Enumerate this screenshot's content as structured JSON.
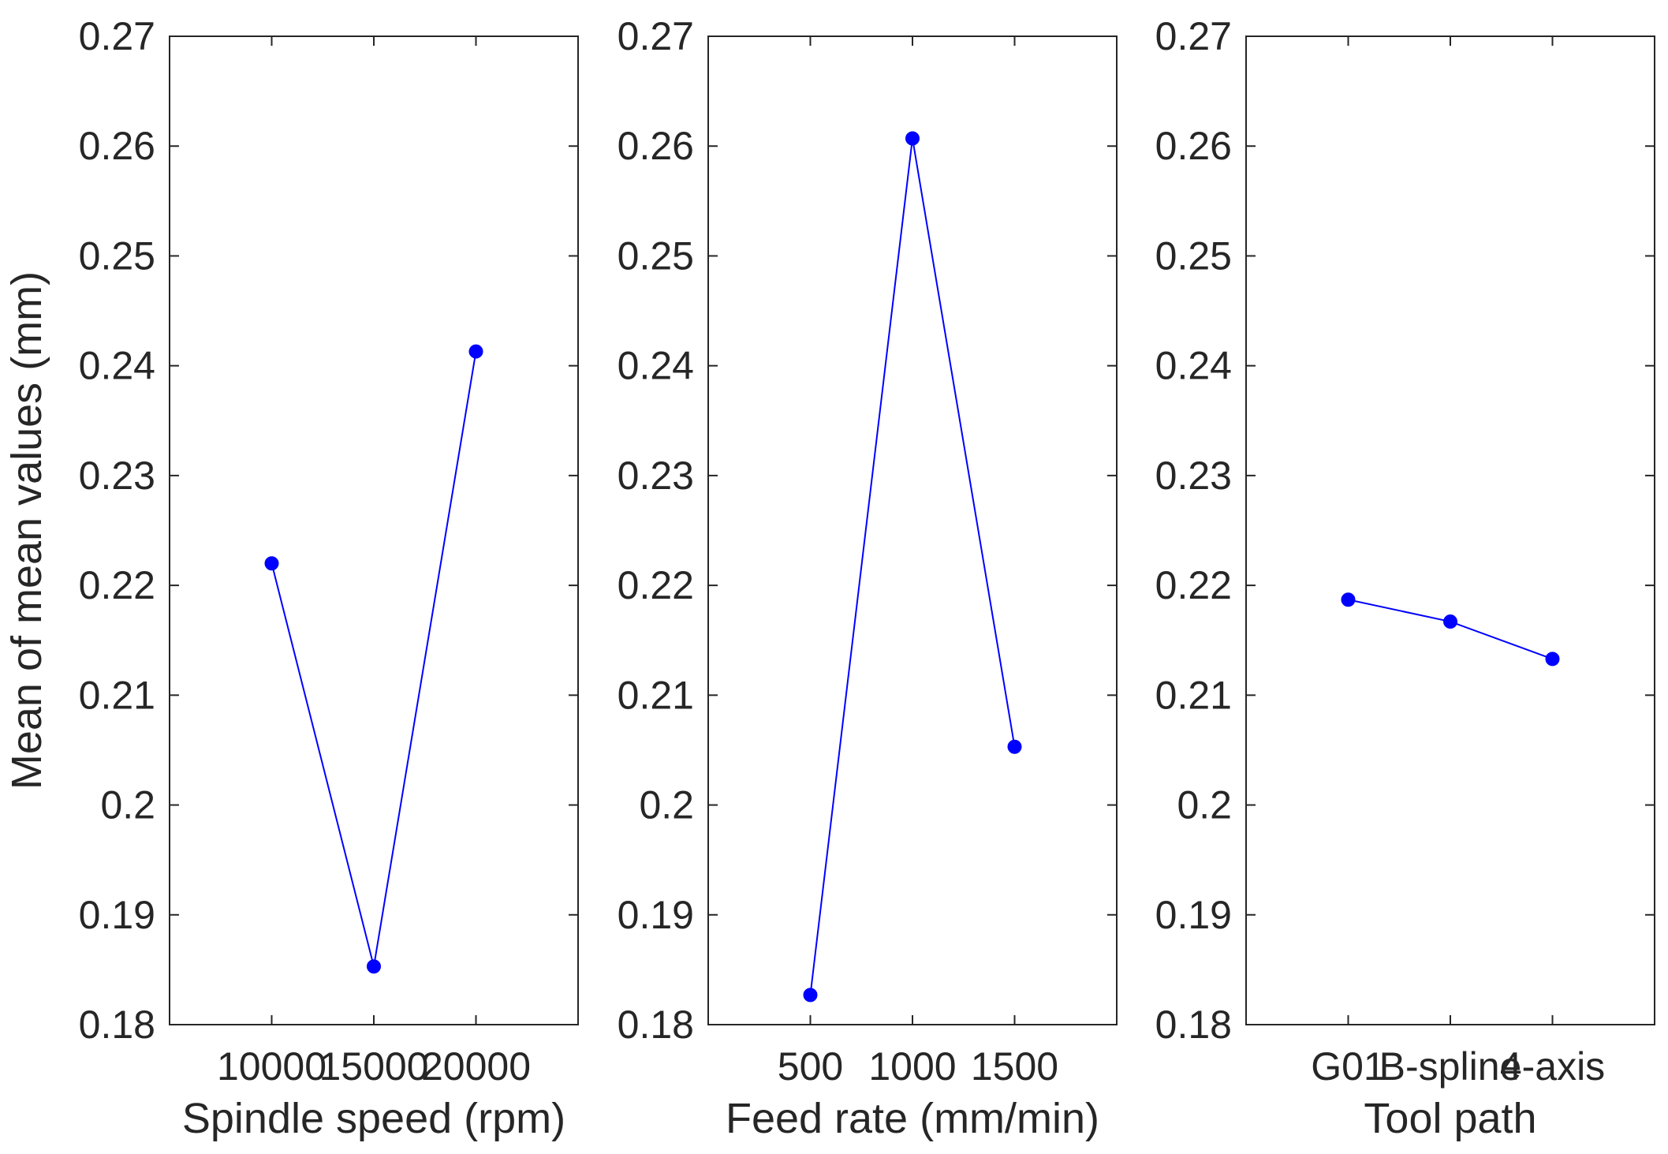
{
  "chart_data": [
    {
      "type": "line",
      "title": "",
      "xlabel": "Spindle speed (rpm)",
      "ylabel": "Mean of mean values (mm)",
      "categories": [
        "10000",
        "15000",
        "20000"
      ],
      "series": [
        {
          "values": [
            0.222,
            0.1853,
            0.2413
          ]
        }
      ],
      "ylim": [
        0.18,
        0.27
      ],
      "yticks": [
        "0.18",
        "0.19",
        "0.2",
        "0.21",
        "0.22",
        "0.23",
        "0.24",
        "0.25",
        "0.26",
        "0.27"
      ],
      "grid": false,
      "color": "#0000ff"
    },
    {
      "type": "line",
      "title": "",
      "xlabel": "Feed rate (mm/min)",
      "ylabel": "",
      "categories": [
        "500",
        "1000",
        "1500"
      ],
      "series": [
        {
          "values": [
            0.1827,
            0.2607,
            0.2053
          ]
        }
      ],
      "ylim": [
        0.18,
        0.27
      ],
      "yticks": [
        "0.18",
        "0.19",
        "0.2",
        "0.21",
        "0.22",
        "0.23",
        "0.24",
        "0.25",
        "0.26",
        "0.27"
      ],
      "grid": false,
      "color": "#0000ff"
    },
    {
      "type": "line",
      "title": "",
      "xlabel": "Tool path",
      "ylabel": "",
      "categories": [
        "G01",
        "B-spline",
        "4-axis"
      ],
      "series": [
        {
          "values": [
            0.2187,
            0.2167,
            0.2133
          ]
        }
      ],
      "ylim": [
        0.18,
        0.27
      ],
      "yticks": [
        "0.18",
        "0.19",
        "0.2",
        "0.21",
        "0.22",
        "0.23",
        "0.24",
        "0.25",
        "0.26",
        "0.27"
      ],
      "grid": false,
      "color": "#0000ff"
    }
  ]
}
